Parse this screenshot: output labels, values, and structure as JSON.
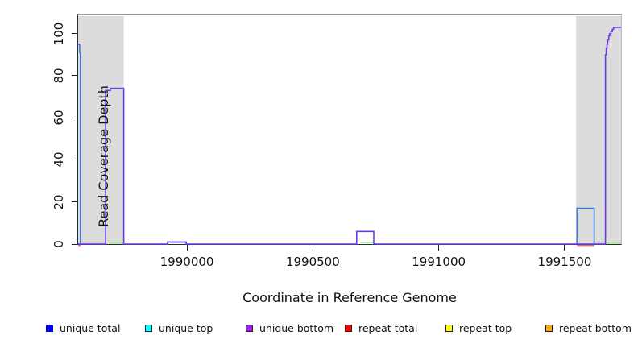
{
  "figure": {
    "background": "#ffffff"
  },
  "chart_data": {
    "type": "line",
    "title": "",
    "xlabel": "Coordinate in Reference Genome",
    "ylabel": "Read Coverage Depth",
    "xlim": [
      1989568,
      1991724
    ],
    "ylim": [
      0,
      108.7
    ],
    "grid": false,
    "x_ticks": [
      {
        "value": 1990000,
        "label": "1990000"
      },
      {
        "value": 1990500,
        "label": "1990500"
      },
      {
        "value": 1991000,
        "label": "1991000"
      },
      {
        "value": 1991500,
        "label": "1991500"
      }
    ],
    "y_ticks": [
      {
        "value": 0,
        "label": "0"
      },
      {
        "value": 20,
        "label": "20"
      },
      {
        "value": 40,
        "label": "40"
      },
      {
        "value": 60,
        "label": "60"
      },
      {
        "value": 80,
        "label": "80"
      },
      {
        "value": 100,
        "label": "100"
      }
    ],
    "highlight_regions": [
      {
        "name": "repeat-region-left",
        "x0": 1989568,
        "x1": 1989749,
        "color": "#dcdcdc"
      },
      {
        "name": "repeat-region-right",
        "x0": 1991545,
        "x1": 1991724,
        "color": "#dcdcdc"
      }
    ],
    "series": [
      {
        "name": "green (unlabeled baseline)",
        "color": "#94e08c",
        "width": 1.8,
        "segments": [
          [
            [
              1989690,
              0.8
            ],
            [
              1989749,
              0.8
            ]
          ],
          [
            [
              1989930,
              0.8
            ],
            [
              1989997,
              0.8
            ]
          ],
          [
            [
              1990688,
              0.8
            ],
            [
              1990742,
              0.8
            ]
          ],
          [
            [
              1991664,
              0.8
            ],
            [
              1991724,
              0.8
            ]
          ]
        ]
      },
      {
        "name": "repeat total",
        "color": "#e86a6a",
        "width": 1.5,
        "segments": [
          [
            [
              1989568,
              -0.6
            ],
            [
              1989578,
              -0.6
            ]
          ],
          [
            [
              1991549,
              -0.6
            ],
            [
              1991618,
              -0.6
            ]
          ]
        ]
      },
      {
        "name": "unique total",
        "color": "#3c7ce8",
        "width": 1.6,
        "segments": [
          [
            [
              1989568,
              95
            ],
            [
              1989574,
              95
            ],
            [
              1989574,
              91
            ],
            [
              1989577,
              91
            ],
            [
              1989577,
              0
            ],
            [
              1989579,
              0
            ]
          ],
          [
            [
              1991549,
              0
            ],
            [
              1991549,
              17
            ],
            [
              1991617,
              17
            ],
            [
              1991617,
              0
            ]
          ]
        ]
      },
      {
        "name": "unique bottom",
        "color": "#6a3aec",
        "width": 1.6,
        "segments": [
          [
            [
              1989568,
              0
            ],
            [
              1989677,
              0
            ],
            [
              1989677,
              73
            ],
            [
              1989696,
              73
            ],
            [
              1989696,
              74
            ],
            [
              1989749,
              74
            ],
            [
              1989749,
              0
            ],
            [
              1989923,
              0
            ],
            [
              1989923,
              1
            ],
            [
              1989997,
              1
            ],
            [
              1989997,
              0
            ],
            [
              1990674,
              0
            ],
            [
              1990674,
              6
            ],
            [
              1990742,
              6
            ],
            [
              1990742,
              0
            ],
            [
              1991662,
              0
            ],
            [
              1991662,
              90
            ],
            [
              1991665,
              90
            ],
            [
              1991665,
              93
            ],
            [
              1991668,
              93
            ],
            [
              1991668,
              95
            ],
            [
              1991671,
              95
            ],
            [
              1991671,
              97
            ],
            [
              1991675,
              97
            ],
            [
              1991675,
              99
            ],
            [
              1991679,
              99
            ],
            [
              1991679,
              100
            ],
            [
              1991684,
              100
            ],
            [
              1991684,
              101
            ],
            [
              1991689,
              101
            ],
            [
              1991689,
              102
            ],
            [
              1991694,
              102
            ],
            [
              1991694,
              103
            ],
            [
              1991724,
              103
            ]
          ]
        ]
      }
    ],
    "legend": {
      "position": "bottom",
      "entries": [
        {
          "label": "unique total",
          "color": "#0000ff",
          "border": "#0000e0"
        },
        {
          "label": "unique top",
          "color": "#00ffff",
          "border": "#222222"
        },
        {
          "label": "unique bottom",
          "color": "#a020f0",
          "border": "#222222"
        },
        {
          "label": "repeat total",
          "color": "#ff0000",
          "border": "#222222"
        },
        {
          "label": "repeat top",
          "color": "#ffff00",
          "border": "#222222"
        },
        {
          "label": "repeat bottom",
          "color": "#ffa500",
          "border": "#222222"
        }
      ]
    }
  }
}
